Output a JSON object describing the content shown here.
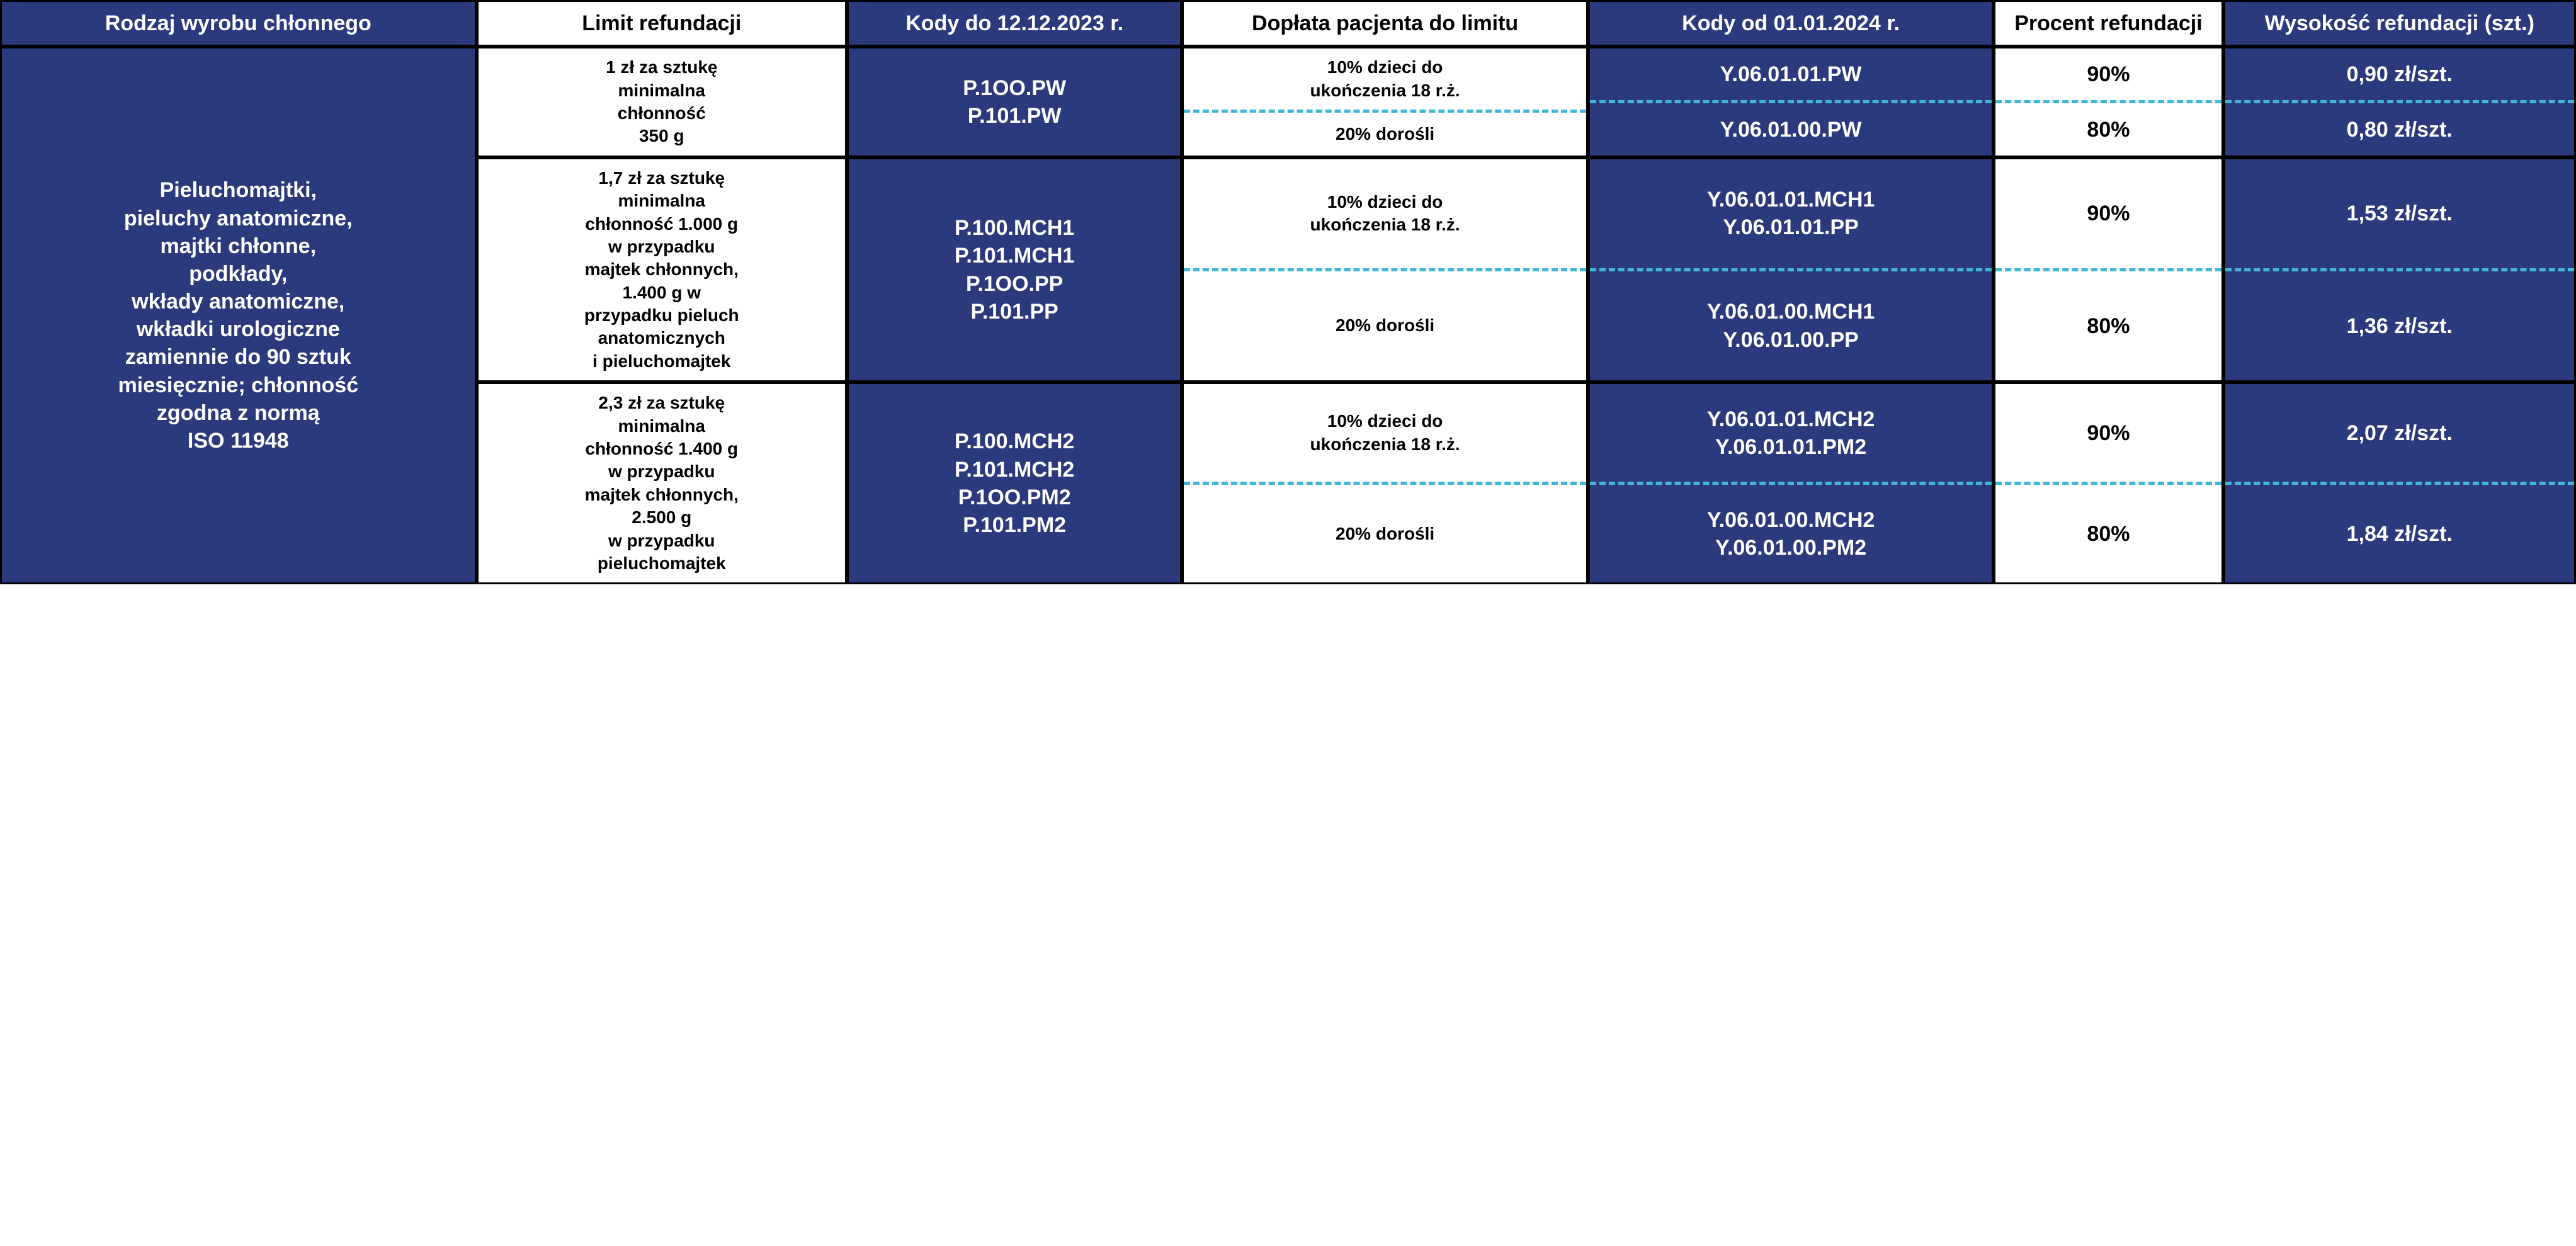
{
  "colors": {
    "blue": "#2a3a7d",
    "white": "#ffffff",
    "black": "#000000",
    "dash": "#3fb7d8"
  },
  "headers": {
    "rodzaj": "Rodzaj wyrobu chłonnego",
    "limit": "Limit refundacji",
    "kody_do": "Kody do 12.12.2023 r.",
    "doplata": "Dopłata pacjenta do limitu",
    "kody_od": "Kody od 01.01.2024 r.",
    "procent": "Procent refundacji",
    "wysokosc": "Wysokość refundacji (szt.)"
  },
  "rodzaj_text": "Pieluchomajtki,\npieluchy anatomiczne,\nmajtki chłonne,\npodkłady,\nwkłady anatomiczne,\nwkładki urologiczne\nzamiennie do 90 sztuk\nmiesięcznie; chłonność\nzgodna z normą\nISO 11948",
  "groups": [
    {
      "limit": "1 zł za sztukę\nminimalna\nchłonność\n350 g",
      "kody_do": "P.1OO.PW\nP.101.PW",
      "rows": [
        {
          "doplata": "10% dzieci do\nukończenia 18 r.ż.",
          "kody_od": "Y.06.01.01.PW",
          "procent": "90%",
          "wysokosc": "0,90 zł/szt."
        },
        {
          "doplata": "20% dorośli",
          "kody_od": "Y.06.01.00.PW",
          "procent": "80%",
          "wysokosc": "0,80 zł/szt."
        }
      ]
    },
    {
      "limit": "1,7 zł za sztukę\nminimalna\nchłonność 1.000 g\nw przypadku\nmajtek chłonnych,\n1.400 g w\nprzypadku pieluch\nanatomicznych\ni pieluchomajtek",
      "kody_do": "P.100.MCH1\nP.101.MCH1\nP.1OO.PP\nP.101.PP",
      "rows": [
        {
          "doplata": "10% dzieci do\nukończenia 18 r.ż.",
          "kody_od": "Y.06.01.01.MCH1\nY.06.01.01.PP",
          "procent": "90%",
          "wysokosc": "1,53 zł/szt."
        },
        {
          "doplata": "20% dorośli",
          "kody_od": "Y.06.01.00.MCH1\nY.06.01.00.PP",
          "procent": "80%",
          "wysokosc": "1,36 zł/szt."
        }
      ]
    },
    {
      "limit": "2,3 zł za sztukę\nminimalna\nchłonność 1.400 g\nw przypadku\nmajtek chłonnych,\n2.500 g\nw przypadku\npieluchomajtek",
      "kody_do": "P.100.MCH2\nP.101.MCH2\nP.1OO.PM2\nP.101.PM2",
      "rows": [
        {
          "doplata": "10% dzieci do\nukończenia 18 r.ż.",
          "kody_od": "Y.06.01.01.MCH2\nY.06.01.01.PM2",
          "procent": "90%",
          "wysokosc": "2,07 zł/szt."
        },
        {
          "doplata": "20% dorośli",
          "kody_od": "Y.06.01.00.MCH2\nY.06.01.00.PM2",
          "procent": "80%",
          "wysokosc": "1,84 zł/szt."
        }
      ]
    }
  ]
}
